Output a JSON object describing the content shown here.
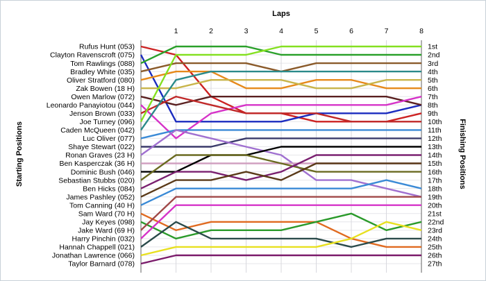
{
  "chart_data": {
    "type": "line",
    "title": "",
    "x_axis_title": "Laps",
    "left_axis_title": "Starting Positions",
    "right_axis_title": "Finishing Positions",
    "laps": [
      0,
      1,
      2,
      3,
      4,
      5,
      6,
      7,
      8
    ],
    "lap_labels": [
      "1",
      "2",
      "3",
      "4",
      "5",
      "6",
      "7",
      "8"
    ],
    "finishing_labels": [
      "1st",
      "2nd",
      "3rd",
      "4th",
      "5th",
      "6th",
      "7th",
      "8th",
      "9th",
      "10th",
      "11th",
      "12th",
      "13th",
      "14th",
      "15th",
      "16th",
      "17th",
      "18th",
      "19th",
      "20th",
      "21st",
      "22nd",
      "23rd",
      "24th",
      "25th",
      "26th",
      "27th"
    ],
    "grid": true,
    "series": [
      {
        "name": "Rufus Hunt (053)",
        "color": "#cc2222",
        "positions": [
          1,
          2,
          7,
          9,
          9,
          10,
          10,
          10,
          9
        ]
      },
      {
        "name": "Clayton Ravenscroft (075)",
        "color": "#1a2bbf",
        "positions": [
          2,
          10,
          10,
          10,
          10,
          9,
          9,
          9,
          8
        ]
      },
      {
        "name": "Tom Rawlings (088)",
        "color": "#2aa02a",
        "positions": [
          3,
          1,
          1,
          1,
          2,
          2,
          2,
          2,
          2
        ]
      },
      {
        "name": "Bradley White (035)",
        "color": "#8a5a2a",
        "positions": [
          4,
          3,
          3,
          3,
          4,
          3,
          3,
          3,
          3
        ]
      },
      {
        "name": "Oliver Stratford (080)",
        "color": "#e6891a",
        "positions": [
          5,
          4,
          4,
          6,
          6,
          5,
          5,
          6,
          6
        ]
      },
      {
        "name": "Zak Bowen (18 H)",
        "color": "#c8b44a",
        "positions": [
          6,
          6,
          5,
          5,
          5,
          6,
          6,
          5,
          5
        ]
      },
      {
        "name": "Owen Marlow (072)",
        "color": "#5a2020",
        "positions": [
          7,
          8,
          7,
          7,
          7,
          7,
          7,
          7,
          8
        ]
      },
      {
        "name": "Leonardo Panayiotou (044)",
        "color": "#d633c8",
        "positions": [
          8,
          12,
          9,
          8,
          8,
          8,
          8,
          8,
          7
        ]
      },
      {
        "name": "Jenson Brown (033)",
        "color": "#c02828",
        "positions": [
          9,
          7,
          8,
          9,
          9,
          9,
          10,
          10,
          10
        ]
      },
      {
        "name": "Joe Turney (096)",
        "color": "#84e020",
        "positions": [
          10,
          2,
          2,
          2,
          1,
          1,
          1,
          1,
          1
        ]
      },
      {
        "name": "Caden McQueen (042)",
        "color": "#2a8a8a",
        "positions": [
          11,
          5,
          4,
          4,
          4,
          4,
          4,
          4,
          4
        ]
      },
      {
        "name": "Luc Oliver (077)",
        "color": "#3a8ad6",
        "positions": [
          12,
          11,
          11,
          11,
          11,
          11,
          11,
          11,
          11
        ]
      },
      {
        "name": "Shaye Stewart (022)",
        "color": "#3a3a6a",
        "positions": [
          13,
          13,
          13,
          12,
          12,
          12,
          12,
          12,
          12
        ]
      },
      {
        "name": "Ronan Graves (23 H)",
        "color": "#a070d0",
        "positions": [
          14,
          11,
          12,
          13,
          14,
          17,
          17,
          18,
          19
        ]
      },
      {
        "name": "Ben Kasperczak (36 H)",
        "color": "#d0a0c0",
        "positions": [
          15,
          15,
          15,
          15,
          15,
          15,
          15,
          15,
          15
        ]
      },
      {
        "name": "Dominic Bush (046)",
        "color": "#000000",
        "positions": [
          16,
          16,
          14,
          14,
          13,
          13,
          13,
          13,
          13
        ]
      },
      {
        "name": "Sebastian Stubbs (020)",
        "color": "#6a6a20",
        "positions": [
          17,
          14,
          14,
          14,
          15,
          16,
          16,
          16,
          16
        ]
      },
      {
        "name": "Ben Hicks (084)",
        "color": "#7a2070",
        "positions": [
          18,
          16,
          16,
          17,
          16,
          14,
          14,
          14,
          14
        ]
      },
      {
        "name": "James Pashley (052)",
        "color": "#5a3a18",
        "positions": [
          19,
          17,
          17,
          16,
          17,
          15,
          15,
          15,
          15
        ]
      },
      {
        "name": "Tom Canning (40 H)",
        "color": "#3a8ad6",
        "positions": [
          20,
          18,
          18,
          18,
          18,
          18,
          18,
          17,
          18
        ]
      },
      {
        "name": "Sam Ward (70 H)",
        "color": "#e06a20",
        "positions": [
          21,
          23,
          22,
          22,
          22,
          22,
          24,
          25,
          25
        ]
      },
      {
        "name": "Jay Keyes (098)",
        "color": "#2a9a2a",
        "positions": [
          22,
          24,
          23,
          23,
          23,
          22,
          21,
          23,
          22
        ]
      },
      {
        "name": "Jake Ward (69 H)",
        "color": "#a04848",
        "positions": [
          23,
          19,
          19,
          19,
          19,
          19,
          19,
          19,
          19
        ]
      },
      {
        "name": "Harry Pinchin (032)",
        "color": "#d633c8",
        "positions": [
          24,
          20,
          20,
          20,
          20,
          20,
          20,
          20,
          20
        ]
      },
      {
        "name": "Hannah Chappell (021)",
        "color": "#2a4a4a",
        "positions": [
          25,
          22,
          24,
          24,
          24,
          24,
          25,
          24,
          24
        ]
      },
      {
        "name": "Jonathan Lawrence (066)",
        "color": "#e8e020",
        "positions": [
          26,
          25,
          25,
          25,
          25,
          25,
          24,
          22,
          23
        ]
      },
      {
        "name": "Taylor Barnard (078)",
        "color": "#7a1a6a",
        "positions": [
          27,
          26,
          26,
          26,
          26,
          26,
          26,
          26,
          26
        ]
      }
    ]
  }
}
